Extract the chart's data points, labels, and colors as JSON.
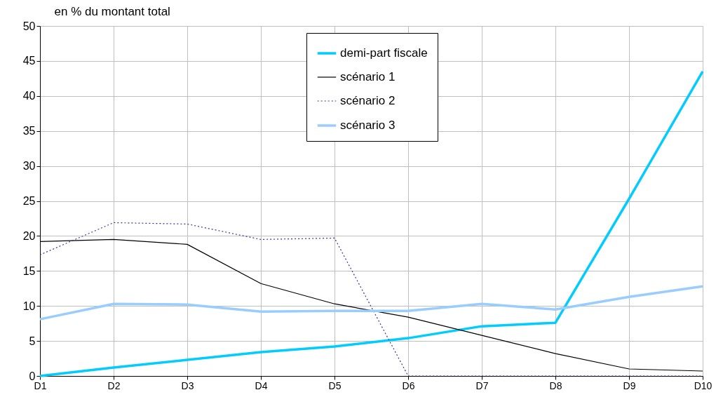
{
  "chart_data": {
    "type": "line",
    "ylabel": "en % du montant total",
    "categories": [
      "D1",
      "D2",
      "D3",
      "D4",
      "D5",
      "D6",
      "D7",
      "D8",
      "D9",
      "D10"
    ],
    "series": [
      {
        "name": "demi-part fiscale",
        "color": "#00ccff",
        "line_style": "solid",
        "values": [
          0,
          1.2,
          2.3,
          3.4,
          4.2,
          5.4,
          7.1,
          7.6,
          25.3,
          43.5
        ]
      },
      {
        "name": "scénario 1",
        "color": "#000000",
        "line_style": "solid",
        "values": [
          19.2,
          19.5,
          18.8,
          13.2,
          10.3,
          8.4,
          5.8,
          3.2,
          1.0,
          0.7
        ]
      },
      {
        "name": "scénario 2",
        "color": "#333399",
        "line_style": "dotted",
        "values": [
          17.3,
          21.9,
          21.7,
          19.5,
          19.7,
          0,
          0,
          0,
          0,
          0
        ]
      },
      {
        "name": "scénario 3",
        "color": "#99ccff",
        "line_style": "solid",
        "values": [
          8.1,
          10.3,
          10.2,
          9.2,
          9.3,
          9.3,
          10.3,
          9.5,
          11.3,
          12.8
        ]
      }
    ],
    "ylim": [
      0,
      50
    ],
    "yticks": [
      0,
      5,
      10,
      15,
      20,
      25,
      30,
      35,
      40,
      45,
      50
    ],
    "grid": true,
    "legend": "top right",
    "marker": "none"
  }
}
